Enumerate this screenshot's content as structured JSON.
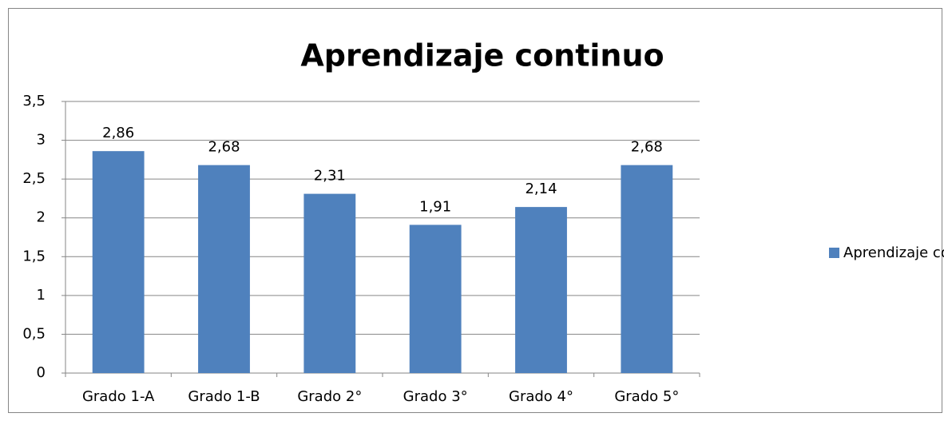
{
  "chart_data": {
    "type": "bar",
    "title": "Aprendizaje continuo",
    "categories": [
      "Grado 1-A",
      "Grado 1-B",
      "Grado 2°",
      "Grado 3°",
      "Grado 4°",
      "Grado 5°"
    ],
    "series": [
      {
        "name": "Aprendizaje continuo",
        "color": "#4f81bd",
        "values": [
          2.86,
          2.68,
          2.31,
          1.91,
          2.14,
          2.68
        ],
        "value_labels": [
          "2,86",
          "2,68",
          "2,31",
          "1,91",
          "2,14",
          "2,68"
        ]
      }
    ],
    "ylim": [
      0,
      3.5
    ],
    "yticks": [
      0,
      {
        "value": 0.5,
        "label": "0,5"
      },
      1,
      {
        "value": 1.5,
        "label": "1,5"
      },
      2,
      {
        "value": 2.5,
        "label": "2,5"
      },
      3,
      {
        "value": 3.5,
        "label": "3,5"
      }
    ],
    "grid": true,
    "legend": "right"
  }
}
